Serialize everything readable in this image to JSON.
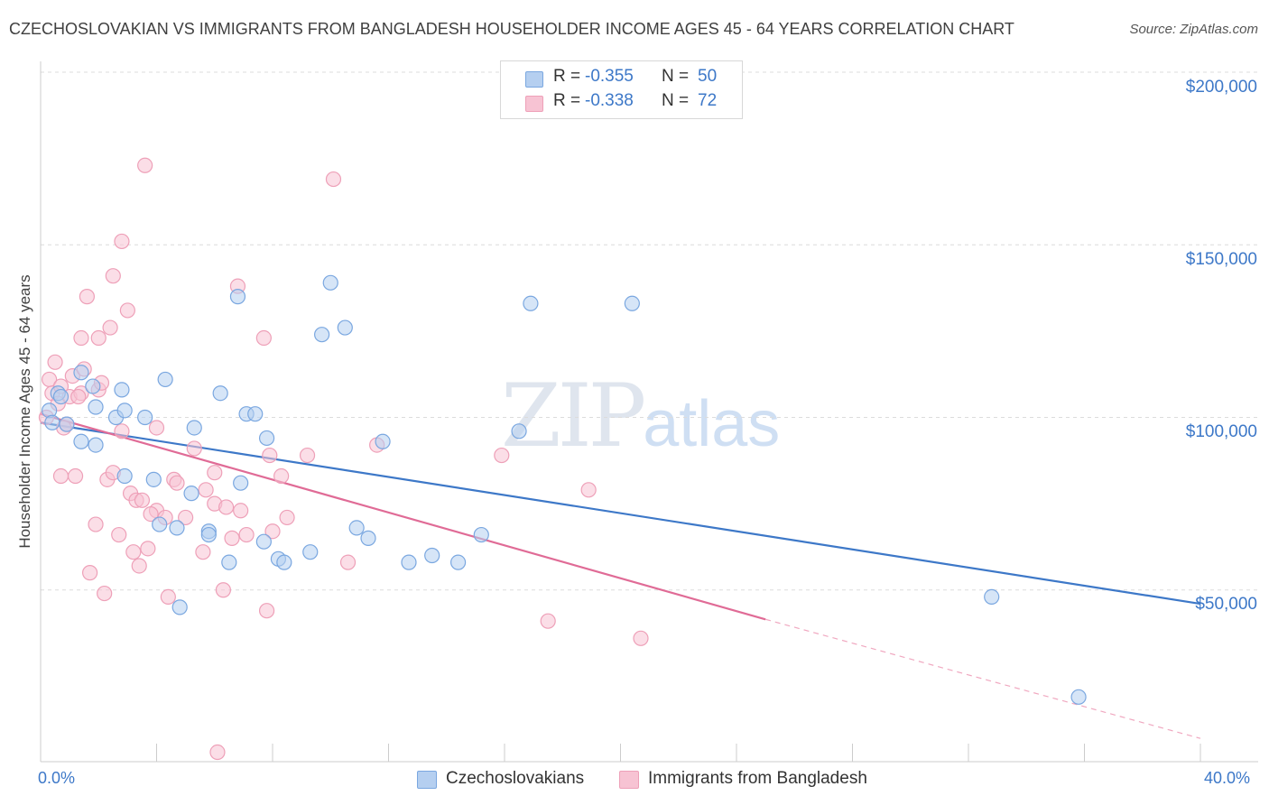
{
  "header": {
    "title": "CZECHOSLOVAKIAN VS IMMIGRANTS FROM BANGLADESH HOUSEHOLDER INCOME AGES 45 - 64 YEARS CORRELATION CHART",
    "source": "Source: ZipAtlas.com"
  },
  "watermark": {
    "zip": "ZIP",
    "atlas": "atlas"
  },
  "legend": {
    "blue": {
      "r_label": "R =",
      "r_value": "-0.355",
      "n_label": "N =",
      "n_value": "50"
    },
    "pink": {
      "r_label": "R =",
      "r_value": "-0.338",
      "n_label": "N =",
      "n_value": "72"
    }
  },
  "colors": {
    "blue": "#3d78c8",
    "blue_fill": "#b5cff0",
    "pink": "#e06b96",
    "pink_fill": "#f7c3d3"
  },
  "chart_data": {
    "type": "scatter",
    "title": "CZECHOSLOVAKIAN VS IMMIGRANTS FROM BANGLADESH HOUSEHOLDER INCOME AGES 45 - 64 YEARS CORRELATION CHART",
    "xlabel": "",
    "ylabel": "Householder Income Ages 45 - 64 years",
    "xlim": [
      0,
      40
    ],
    "ylim": [
      0,
      205000
    ],
    "x_tick_labels": [
      "0.0%",
      "40.0%"
    ],
    "y_tick_labels": [
      "$200,000",
      "$150,000",
      "$100,000",
      "$50,000"
    ],
    "y_ticks": [
      200000,
      150000,
      100000,
      50000
    ],
    "grid": true,
    "legend_position": "top-center",
    "series": [
      {
        "name": "Czechoslovakians",
        "color": "#3d78c8",
        "trend": {
          "x": [
            0,
            40
          ],
          "y": [
            98500,
            46000
          ]
        },
        "points": [
          [
            0.3,
            102000
          ],
          [
            0.4,
            98500
          ],
          [
            0.6,
            107000
          ],
          [
            0.7,
            106000
          ],
          [
            0.9,
            98000
          ],
          [
            1.4,
            113000
          ],
          [
            1.8,
            109000
          ],
          [
            1.4,
            93000
          ],
          [
            1.9,
            92000
          ],
          [
            1.9,
            103000
          ],
          [
            2.6,
            100000
          ],
          [
            2.8,
            108000
          ],
          [
            2.9,
            102000
          ],
          [
            2.9,
            83000
          ],
          [
            3.9,
            82000
          ],
          [
            4.3,
            111000
          ],
          [
            4.1,
            69000
          ],
          [
            4.7,
            68000
          ],
          [
            5.2,
            78000
          ],
          [
            5.3,
            97000
          ],
          [
            5.8,
            67000
          ],
          [
            5.8,
            66000
          ],
          [
            6.2,
            107000
          ],
          [
            6.5,
            58000
          ],
          [
            6.8,
            135000
          ],
          [
            6.9,
            81000
          ],
          [
            7.1,
            101000
          ],
          [
            7.4,
            101000
          ],
          [
            7.7,
            64000
          ],
          [
            7.8,
            94000
          ],
          [
            8.2,
            59000
          ],
          [
            8.4,
            58000
          ],
          [
            9.3,
            61000
          ],
          [
            9.7,
            124000
          ],
          [
            10.0,
            139000
          ],
          [
            10.5,
            126000
          ],
          [
            10.9,
            68000
          ],
          [
            11.3,
            65000
          ],
          [
            11.8,
            93000
          ],
          [
            12.7,
            58000
          ],
          [
            13.5,
            60000
          ],
          [
            14.4,
            58000
          ],
          [
            15.2,
            66000
          ],
          [
            16.5,
            96000
          ],
          [
            16.9,
            133000
          ],
          [
            20.4,
            133000
          ],
          [
            32.8,
            48000
          ],
          [
            35.8,
            19000
          ],
          [
            4.8,
            45000
          ],
          [
            3.6,
            100000
          ]
        ]
      },
      {
        "name": "Immigrants from Bangladesh",
        "color": "#e06b96",
        "trend": {
          "x": [
            0,
            25
          ],
          "y": [
            101000,
            41500
          ]
        },
        "trend_dashed": {
          "x": [
            25,
            40
          ],
          "y": [
            41500,
            7000
          ]
        },
        "points": [
          [
            0.2,
            100000
          ],
          [
            0.3,
            111000
          ],
          [
            0.4,
            107000
          ],
          [
            0.5,
            116000
          ],
          [
            0.6,
            104000
          ],
          [
            0.7,
            109000
          ],
          [
            0.7,
            83000
          ],
          [
            0.9,
            98000
          ],
          [
            1.0,
            106000
          ],
          [
            1.2,
            83000
          ],
          [
            1.1,
            112000
          ],
          [
            1.4,
            107000
          ],
          [
            1.4,
            123000
          ],
          [
            1.5,
            114000
          ],
          [
            1.6,
            135000
          ],
          [
            1.7,
            55000
          ],
          [
            1.9,
            69000
          ],
          [
            2.0,
            108000
          ],
          [
            2.0,
            123000
          ],
          [
            2.2,
            49000
          ],
          [
            2.3,
            82000
          ],
          [
            2.4,
            126000
          ],
          [
            2.5,
            84000
          ],
          [
            2.5,
            141000
          ],
          [
            2.7,
            66000
          ],
          [
            2.8,
            96000
          ],
          [
            2.8,
            151000
          ],
          [
            3.0,
            131000
          ],
          [
            3.1,
            78000
          ],
          [
            3.2,
            61000
          ],
          [
            3.3,
            76000
          ],
          [
            3.4,
            57000
          ],
          [
            3.5,
            76000
          ],
          [
            3.6,
            173000
          ],
          [
            3.7,
            62000
          ],
          [
            4.0,
            97000
          ],
          [
            4.0,
            73000
          ],
          [
            4.3,
            71000
          ],
          [
            4.4,
            48000
          ],
          [
            4.6,
            82000
          ],
          [
            4.7,
            81000
          ],
          [
            5.0,
            71000
          ],
          [
            5.3,
            91000
          ],
          [
            5.7,
            79000
          ],
          [
            6.0,
            84000
          ],
          [
            6.0,
            75000
          ],
          [
            6.3,
            50000
          ],
          [
            6.4,
            74000
          ],
          [
            6.6,
            65000
          ],
          [
            6.8,
            138000
          ],
          [
            6.9,
            73000
          ],
          [
            7.1,
            66000
          ],
          [
            7.7,
            123000
          ],
          [
            7.8,
            44000
          ],
          [
            7.9,
            89000
          ],
          [
            8.0,
            67000
          ],
          [
            8.3,
            83000
          ],
          [
            8.5,
            71000
          ],
          [
            9.2,
            89000
          ],
          [
            10.1,
            169000
          ],
          [
            10.6,
            58000
          ],
          [
            11.6,
            92000
          ],
          [
            15.9,
            89000
          ],
          [
            17.5,
            41000
          ],
          [
            18.9,
            79000
          ],
          [
            20.7,
            36000
          ],
          [
            6.1,
            3000
          ],
          [
            0.8,
            97000
          ],
          [
            1.3,
            106000
          ],
          [
            5.6,
            61000
          ],
          [
            2.1,
            110000
          ],
          [
            3.8,
            72000
          ]
        ]
      }
    ]
  },
  "bottom_legend": {
    "blue_label": "Czechoslovakians",
    "pink_label": "Immigrants from Bangladesh"
  },
  "axes": {
    "y_title": "Householder Income Ages 45 - 64 years",
    "x_min_label": "0.0%",
    "x_max_label": "40.0%",
    "y_labels": [
      "$200,000",
      "$150,000",
      "$100,000",
      "$50,000"
    ]
  }
}
